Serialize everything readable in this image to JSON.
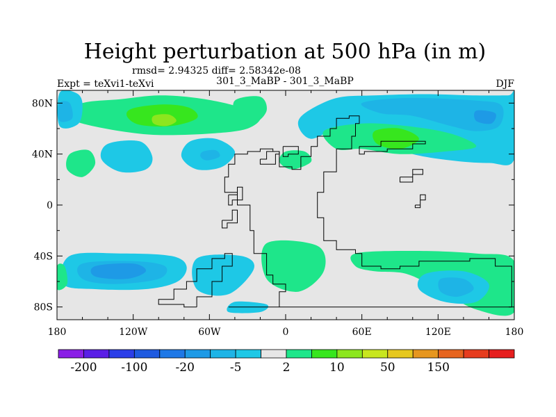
{
  "chart_data": {
    "type": "heatmap",
    "title": "Height perturbation at 500 hPa (in m)",
    "stats": "rmsd= 2.94325 diff= 2.58342e-08",
    "left_label": "Expt = teXvi1-teXvi",
    "center_label": "301_3_MaBP - 301_3_MaBP",
    "right_label": "DJF",
    "x_ticks": [
      {
        "value": -180,
        "label": "180"
      },
      {
        "value": -120,
        "label": "120W"
      },
      {
        "value": -60,
        "label": "60W"
      },
      {
        "value": 0,
        "label": "0"
      },
      {
        "value": 60,
        "label": "60E"
      },
      {
        "value": 120,
        "label": "120E"
      },
      {
        "value": 180,
        "label": "180"
      }
    ],
    "y_ticks": [
      {
        "value": 80,
        "label": "80N"
      },
      {
        "value": 40,
        "label": "40N"
      },
      {
        "value": 0,
        "label": "0"
      },
      {
        "value": -40,
        "label": "40S"
      },
      {
        "value": -80,
        "label": "80S"
      }
    ],
    "xlim": [
      -180,
      180
    ],
    "ylim": [
      -90,
      90
    ],
    "colorbar": {
      "colors": [
        "#8a1ee6",
        "#5a1ee6",
        "#2b3ee8",
        "#1e5ae0",
        "#1e78e6",
        "#1e9ae6",
        "#1eb4e6",
        "#1ec8e6",
        "#e6e6e6",
        "#1ee68a",
        "#37e61e",
        "#8ce61e",
        "#c8e61e",
        "#e6c81e",
        "#e6961e",
        "#e6641e",
        "#e63c1e",
        "#e61e1e"
      ],
      "labels": [
        "-200",
        "-100",
        "-20",
        "-5",
        "2",
        "10",
        "50",
        "150"
      ]
    },
    "regions": [
      {
        "level": 2,
        "color": "#1ee68a",
        "points": [
          [
            -160,
            80
          ],
          [
            -130,
            83
          ],
          [
            -100,
            86
          ],
          [
            -70,
            84
          ],
          [
            -40,
            78
          ],
          [
            -20,
            70
          ],
          [
            -30,
            60
          ],
          [
            -60,
            56
          ],
          [
            -100,
            55
          ],
          [
            -130,
            58
          ],
          [
            -160,
            64
          ],
          [
            -172,
            70
          ]
        ]
      },
      {
        "level": 3,
        "color": "#37e61e",
        "points": [
          [
            -120,
            76
          ],
          [
            -95,
            79
          ],
          [
            -75,
            76
          ],
          [
            -70,
            68
          ],
          [
            -90,
            62
          ],
          [
            -115,
            63
          ],
          [
            -125,
            70
          ]
        ]
      },
      {
        "level": 4,
        "color": "#8ce61e",
        "points": [
          [
            -104,
            70
          ],
          [
            -92,
            71
          ],
          [
            -86,
            66
          ],
          [
            -94,
            62
          ],
          [
            -104,
            64
          ]
        ]
      },
      {
        "level": -1,
        "color": "#1ec8e6",
        "points": [
          [
            -178,
            88
          ],
          [
            -165,
            88
          ],
          [
            -160,
            80
          ],
          [
            -163,
            64
          ],
          [
            -178,
            62
          ]
        ]
      },
      {
        "level": -2,
        "color": "#1eb4e6",
        "points": [
          [
            -178,
            80
          ],
          [
            -170,
            80
          ],
          [
            -168,
            68
          ],
          [
            -178,
            66
          ]
        ]
      },
      {
        "level": -1,
        "color": "#1ec8e6",
        "points": [
          [
            -75,
            50
          ],
          [
            -55,
            52
          ],
          [
            -40,
            42
          ],
          [
            -50,
            30
          ],
          [
            -70,
            28
          ],
          [
            -82,
            38
          ]
        ]
      },
      {
        "level": -2,
        "color": "#1eb4e6",
        "points": [
          [
            -65,
            42
          ],
          [
            -55,
            43
          ],
          [
            -52,
            38
          ],
          [
            -62,
            35
          ],
          [
            -67,
            38
          ]
        ]
      },
      {
        "level": 2,
        "color": "#1ee68a",
        "points": [
          [
            -170,
            40
          ],
          [
            -155,
            43
          ],
          [
            -150,
            32
          ],
          [
            -160,
            22
          ],
          [
            -172,
            28
          ]
        ]
      },
      {
        "level": -1,
        "color": "#1ec8e6",
        "points": [
          [
            -140,
            48
          ],
          [
            -115,
            50
          ],
          [
            -105,
            38
          ],
          [
            -110,
            28
          ],
          [
            -130,
            26
          ],
          [
            -145,
            36
          ]
        ]
      },
      {
        "level": 2,
        "color": "#1ee68a",
        "points": [
          [
            -40,
            82
          ],
          [
            -20,
            85
          ],
          [
            -15,
            74
          ],
          [
            -25,
            64
          ],
          [
            -38,
            68
          ]
        ]
      },
      {
        "level": -1,
        "color": "#1ec8e6",
        "points": [
          [
            15,
            72
          ],
          [
            40,
            84
          ],
          [
            70,
            86
          ],
          [
            110,
            87
          ],
          [
            150,
            86
          ],
          [
            175,
            86
          ],
          [
            180,
            86
          ],
          [
            180,
            36
          ],
          [
            160,
            33
          ],
          [
            130,
            35
          ],
          [
            100,
            40
          ],
          [
            80,
            48
          ],
          [
            60,
            60
          ],
          [
            40,
            60
          ],
          [
            20,
            52
          ],
          [
            10,
            62
          ]
        ]
      },
      {
        "level": -2,
        "color": "#1eb4e6",
        "points": [
          [
            60,
            80
          ],
          [
            95,
            84
          ],
          [
            150,
            82
          ],
          [
            170,
            78
          ],
          [
            168,
            62
          ],
          [
            150,
            58
          ],
          [
            130,
            62
          ],
          [
            100,
            70
          ],
          [
            75,
            72
          ]
        ]
      },
      {
        "level": -3,
        "color": "#1e9ae6",
        "points": [
          [
            150,
            74
          ],
          [
            165,
            72
          ],
          [
            162,
            64
          ],
          [
            150,
            66
          ]
        ]
      },
      {
        "level": 2,
        "color": "#1ee68a",
        "points": [
          [
            30,
            58
          ],
          [
            60,
            64
          ],
          [
            95,
            62
          ],
          [
            130,
            56
          ],
          [
            150,
            46
          ],
          [
            125,
            42
          ],
          [
            90,
            40
          ],
          [
            60,
            44
          ],
          [
            40,
            44
          ]
        ]
      },
      {
        "level": 3,
        "color": "#37e61e",
        "points": [
          [
            70,
            58
          ],
          [
            90,
            60
          ],
          [
            105,
            52
          ],
          [
            90,
            44
          ],
          [
            72,
            48
          ]
        ]
      },
      {
        "level": 2,
        "color": "#1ee68a",
        "points": [
          [
            0,
            42
          ],
          [
            15,
            42
          ],
          [
            20,
            34
          ],
          [
            5,
            28
          ],
          [
            -5,
            34
          ]
        ]
      },
      {
        "level": -1,
        "color": "#1ec8e6",
        "points": [
          [
            -170,
            -40
          ],
          [
            -130,
            -38
          ],
          [
            -90,
            -40
          ],
          [
            -78,
            -48
          ],
          [
            -85,
            -60
          ],
          [
            -110,
            -66
          ],
          [
            -150,
            -66
          ],
          [
            -175,
            -62
          ]
        ]
      },
      {
        "level": -2,
        "color": "#1eb4e6",
        "points": [
          [
            -160,
            -46
          ],
          [
            -120,
            -44
          ],
          [
            -95,
            -48
          ],
          [
            -100,
            -58
          ],
          [
            -135,
            -62
          ],
          [
            -160,
            -58
          ]
        ]
      },
      {
        "level": -3,
        "color": "#1e9ae6",
        "points": [
          [
            -150,
            -48
          ],
          [
            -120,
            -46
          ],
          [
            -110,
            -52
          ],
          [
            -125,
            -58
          ],
          [
            -150,
            -56
          ]
        ]
      },
      {
        "level": 2,
        "color": "#1ee68a",
        "points": [
          [
            -180,
            -48
          ],
          [
            -174,
            -48
          ],
          [
            -172,
            -62
          ],
          [
            -180,
            -66
          ]
        ]
      },
      {
        "level": -1,
        "color": "#1ec8e6",
        "points": [
          [
            -70,
            -42
          ],
          [
            -35,
            -40
          ],
          [
            -25,
            -50
          ],
          [
            -45,
            -70
          ],
          [
            -70,
            -66
          ]
        ]
      },
      {
        "level": 2,
        "color": "#1ee68a",
        "points": [
          [
            -15,
            -30
          ],
          [
            25,
            -32
          ],
          [
            30,
            -52
          ],
          [
            10,
            -68
          ],
          [
            -15,
            -58
          ]
        ]
      },
      {
        "level": 2,
        "color": "#1ee68a",
        "points": [
          [
            55,
            -38
          ],
          [
            100,
            -36
          ],
          [
            150,
            -38
          ],
          [
            180,
            -44
          ],
          [
            180,
            -84
          ],
          [
            150,
            -82
          ],
          [
            120,
            -66
          ],
          [
            95,
            -54
          ],
          [
            70,
            -52
          ],
          [
            55,
            -48
          ]
        ]
      },
      {
        "level": -1,
        "color": "#1ec8e6",
        "points": [
          [
            110,
            -54
          ],
          [
            140,
            -52
          ],
          [
            160,
            -62
          ],
          [
            150,
            -76
          ],
          [
            125,
            -76
          ],
          [
            105,
            -66
          ]
        ]
      },
      {
        "level": -2,
        "color": "#1eb4e6",
        "points": [
          [
            122,
            -58
          ],
          [
            140,
            -58
          ],
          [
            148,
            -66
          ],
          [
            135,
            -72
          ],
          [
            122,
            -68
          ]
        ]
      },
      {
        "level": -1,
        "color": "#1ec8e6",
        "points": [
          [
            -40,
            -76
          ],
          [
            -15,
            -78
          ],
          [
            -20,
            -84
          ],
          [
            -45,
            -84
          ]
        ]
      }
    ]
  }
}
